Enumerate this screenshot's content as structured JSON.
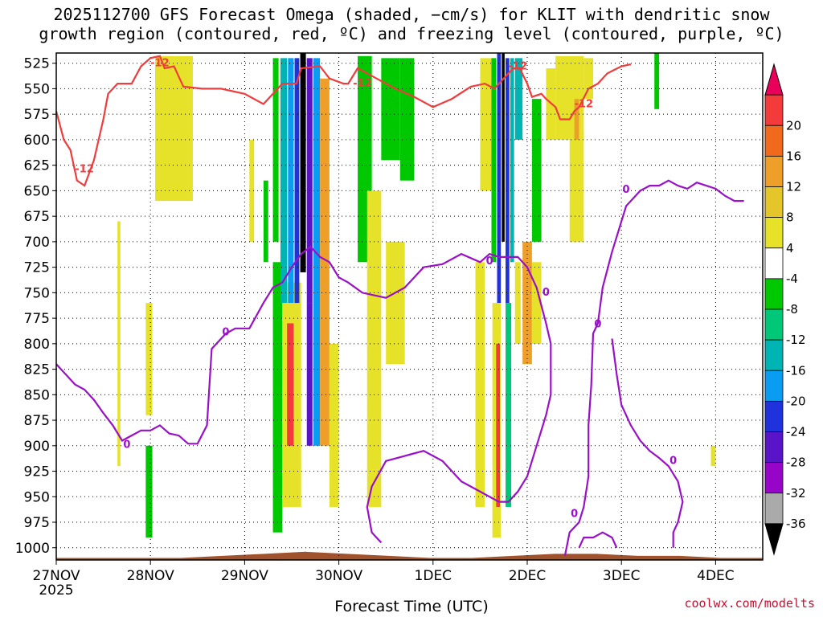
{
  "title_line1": "2025112700 GFS Forecast Omega (shaded, −cm/s) for KLIT with dendritic snow",
  "title_line2": "growth region (contoured, red, ºC) and freezing level (contoured, purple, ºC)",
  "xlabel": "Forecast Time (UTC)",
  "credit": "coolwx.com/modelts",
  "chart_data": {
    "type": "heatmap",
    "title": "2025112700 GFS Forecast Omega (shaded, −cm/s) for KLIT with dendritic snow growth region (contoured, red, ºC) and freezing level (contoured, purple, ºC)",
    "xlabel": "Forecast Time (UTC)",
    "ylabel": "",
    "x_ticks": [
      "27NOV",
      "28NOV",
      "29NOV",
      "30NOV",
      "1DEC",
      "2DEC",
      "3DEC",
      "4DEC"
    ],
    "x_tick_sub": "2025",
    "x_range_days": [
      0,
      7.5
    ],
    "y_ticks": [
      525,
      550,
      575,
      600,
      625,
      650,
      675,
      700,
      725,
      750,
      775,
      800,
      825,
      850,
      875,
      900,
      925,
      950,
      975,
      1000
    ],
    "y_range_hPa": [
      515,
      1012
    ],
    "grid": true,
    "colorbar": {
      "ticks": [
        20,
        16,
        12,
        8,
        4,
        -4,
        -8,
        -12,
        -16,
        -20,
        -24,
        -28,
        -32,
        -36
      ],
      "colors": [
        "#e8005a",
        "#f33b3b",
        "#f06a1d",
        "#ee9f2a",
        "#e4c52a",
        "#e6e22a",
        "#ffffff",
        "#00c800",
        "#00c878",
        "#00b4b4",
        "#0a9cf0",
        "#1f32dc",
        "#5a14c8",
        "#9605c8",
        "#aaaaaa",
        "#000000"
      ]
    },
    "omega_cells": [
      {
        "t": [
          0.65,
          0.68
        ],
        "p": [
          680,
          920
        ],
        "v": 5
      },
      {
        "t": [
          0.95,
          1.02
        ],
        "p": [
          760,
          870
        ],
        "v": 5
      },
      {
        "t": [
          0.95,
          1.02
        ],
        "p": [
          900,
          990
        ],
        "v": -7
      },
      {
        "t": [
          1.05,
          1.45
        ],
        "p": [
          518,
          660
        ],
        "v": 5
      },
      {
        "t": [
          1.05,
          1.1
        ],
        "p": [
          518,
          560
        ],
        "v": 5
      },
      {
        "t": [
          2.05,
          2.1
        ],
        "p": [
          600,
          700
        ],
        "v": 5
      },
      {
        "t": [
          2.2,
          2.25
        ],
        "p": [
          640,
          720
        ],
        "v": -7
      },
      {
        "t": [
          2.3,
          2.4
        ],
        "p": [
          720,
          985
        ],
        "v": -7
      },
      {
        "t": [
          2.4,
          2.6
        ],
        "p": [
          740,
          960
        ],
        "v": 6
      },
      {
        "t": [
          2.45,
          2.52
        ],
        "p": [
          780,
          900
        ],
        "v": 17
      },
      {
        "t": [
          2.3,
          2.36
        ],
        "p": [
          520,
          700
        ],
        "v": -7
      },
      {
        "t": [
          2.38,
          2.45
        ],
        "p": [
          520,
          760
        ],
        "v": -14
      },
      {
        "t": [
          2.46,
          2.52
        ],
        "p": [
          520,
          760
        ],
        "v": -18
      },
      {
        "t": [
          2.53,
          2.58
        ],
        "p": [
          520,
          760
        ],
        "v": -22
      },
      {
        "t": [
          2.59,
          2.65
        ],
        "p": [
          515,
          730
        ],
        "v": -40
      },
      {
        "t": [
          2.66,
          2.72
        ],
        "p": [
          520,
          760
        ],
        "v": -26
      },
      {
        "t": [
          2.73,
          2.8
        ],
        "p": [
          520,
          900
        ],
        "v": -18
      },
      {
        "t": [
          2.8,
          2.9
        ],
        "p": [
          540,
          900
        ],
        "v": 9
      },
      {
        "t": [
          2.66,
          2.72
        ],
        "p": [
          760,
          900
        ],
        "v": -24
      },
      {
        "t": [
          2.9,
          3.0
        ],
        "p": [
          800,
          960
        ],
        "v": 6
      },
      {
        "t": [
          3.2,
          3.35
        ],
        "p": [
          518,
          720
        ],
        "v": -7
      },
      {
        "t": [
          3.3,
          3.45
        ],
        "p": [
          650,
          960
        ],
        "v": 5
      },
      {
        "t": [
          3.45,
          3.65
        ],
        "p": [
          520,
          620
        ],
        "v": -7
      },
      {
        "t": [
          3.5,
          3.7
        ],
        "p": [
          700,
          820
        ],
        "v": 5
      },
      {
        "t": [
          3.65,
          3.8
        ],
        "p": [
          520,
          640
        ],
        "v": -7
      },
      {
        "t": [
          4.45,
          4.55
        ],
        "p": [
          720,
          960
        ],
        "v": 5
      },
      {
        "t": [
          4.5,
          4.62
        ],
        "p": [
          520,
          650
        ],
        "v": 5
      },
      {
        "t": [
          4.62,
          4.67
        ],
        "p": [
          520,
          720
        ],
        "v": -7
      },
      {
        "t": [
          4.68,
          4.72
        ],
        "p": [
          515,
          760
        ],
        "v": -20
      },
      {
        "t": [
          4.73,
          4.76
        ],
        "p": [
          515,
          700
        ],
        "v": -40
      },
      {
        "t": [
          4.63,
          4.72
        ],
        "p": [
          760,
          990
        ],
        "v": 7
      },
      {
        "t": [
          4.67,
          4.71
        ],
        "p": [
          800,
          960
        ],
        "v": 19
      },
      {
        "t": [
          4.77,
          4.81
        ],
        "p": [
          520,
          760
        ],
        "v": -20
      },
      {
        "t": [
          4.82,
          4.86
        ],
        "p": [
          520,
          720
        ],
        "v": -14
      },
      {
        "t": [
          4.77,
          4.83
        ],
        "p": [
          760,
          960
        ],
        "v": -8
      },
      {
        "t": [
          4.87,
          4.95
        ],
        "p": [
          520,
          600
        ],
        "v": -14
      },
      {
        "t": [
          4.87,
          4.93
        ],
        "p": [
          720,
          800
        ],
        "v": 6
      },
      {
        "t": [
          4.95,
          5.05
        ],
        "p": [
          700,
          820
        ],
        "v": 9
      },
      {
        "t": [
          5.05,
          5.15
        ],
        "p": [
          560,
          700
        ],
        "v": -7
      },
      {
        "t": [
          5.05,
          5.15
        ],
        "p": [
          720,
          800
        ],
        "v": 5
      },
      {
        "t": [
          5.2,
          5.3
        ],
        "p": [
          530,
          600
        ],
        "v": 5
      },
      {
        "t": [
          5.3,
          5.6
        ],
        "p": [
          518,
          600
        ],
        "v": 5
      },
      {
        "t": [
          5.6,
          5.7
        ],
        "p": [
          520,
          560
        ],
        "v": 5
      },
      {
        "t": [
          5.45,
          5.6
        ],
        "p": [
          590,
          700
        ],
        "v": 5
      },
      {
        "t": [
          5.5,
          5.55
        ],
        "p": [
          560,
          600
        ],
        "v": 9
      },
      {
        "t": [
          6.35,
          6.4
        ],
        "p": [
          515,
          570
        ],
        "v": -7
      },
      {
        "t": [
          6.95,
          7.0
        ],
        "p": [
          900,
          920
        ],
        "v": 5
      }
    ],
    "terrain_hPa": [
      1010,
      1010,
      1010,
      1010,
      1008,
      1006,
      1004,
      1006,
      1008,
      1010,
      1010,
      1008,
      1006,
      1006,
      1008,
      1008,
      1010,
      1010
    ],
    "dgz_contour_-12": [
      [
        0.0,
        572
      ],
      [
        0.08,
        600
      ],
      [
        0.15,
        610
      ],
      [
        0.22,
        640
      ],
      [
        0.3,
        645
      ],
      [
        0.4,
        620
      ],
      [
        0.5,
        580
      ],
      [
        0.55,
        555
      ],
      [
        0.65,
        545
      ],
      [
        0.8,
        545
      ],
      [
        0.9,
        528
      ],
      [
        1.0,
        520
      ],
      [
        1.1,
        518
      ],
      [
        1.15,
        530
      ],
      [
        1.25,
        528
      ],
      [
        1.35,
        548
      ],
      [
        1.55,
        550
      ],
      [
        1.75,
        550
      ],
      [
        2.0,
        555
      ],
      [
        2.2,
        565
      ],
      [
        2.4,
        545
      ],
      [
        2.55,
        545
      ],
      [
        2.6,
        530
      ],
      [
        2.8,
        528
      ],
      [
        2.9,
        540
      ],
      [
        3.05,
        545
      ],
      [
        3.1,
        545
      ],
      [
        3.2,
        530
      ],
      [
        3.4,
        540
      ],
      [
        3.6,
        550
      ],
      [
        3.8,
        558
      ],
      [
        4.0,
        568
      ],
      [
        4.2,
        560
      ],
      [
        4.4,
        548
      ],
      [
        4.55,
        545
      ],
      [
        4.65,
        550
      ],
      [
        4.75,
        540
      ],
      [
        4.85,
        530
      ],
      [
        4.92,
        530
      ],
      [
        5.0,
        545
      ],
      [
        5.05,
        558
      ],
      [
        5.15,
        555
      ],
      [
        5.2,
        560
      ],
      [
        5.3,
        568
      ],
      [
        5.35,
        580
      ],
      [
        5.45,
        580
      ],
      [
        5.5,
        572
      ],
      [
        5.55,
        568
      ],
      [
        5.65,
        550
      ],
      [
        5.75,
        545
      ],
      [
        5.85,
        535
      ],
      [
        6.0,
        528
      ],
      [
        6.1,
        526
      ]
    ],
    "freezing_contour_0": [
      [
        0.0,
        820
      ],
      [
        0.1,
        830
      ],
      [
        0.2,
        840
      ],
      [
        0.3,
        845
      ],
      [
        0.4,
        855
      ],
      [
        0.5,
        868
      ],
      [
        0.6,
        880
      ],
      [
        0.7,
        895
      ],
      [
        0.8,
        890
      ],
      [
        0.9,
        885
      ],
      [
        1.0,
        885
      ],
      [
        1.1,
        880
      ],
      [
        1.2,
        888
      ],
      [
        1.3,
        890
      ],
      [
        1.4,
        898
      ],
      [
        1.5,
        898
      ],
      [
        1.6,
        880
      ],
      [
        1.65,
        805
      ],
      [
        1.8,
        790
      ],
      [
        1.9,
        785
      ],
      [
        2.05,
        785
      ],
      [
        2.2,
        760
      ],
      [
        2.3,
        745
      ],
      [
        2.4,
        740
      ],
      [
        2.5,
        725
      ],
      [
        2.6,
        712
      ],
      [
        2.7,
        705
      ],
      [
        2.8,
        715
      ],
      [
        2.9,
        720
      ],
      [
        3.0,
        735
      ],
      [
        3.1,
        740
      ],
      [
        3.25,
        750
      ],
      [
        3.5,
        755
      ],
      [
        3.7,
        745
      ],
      [
        3.9,
        725
      ],
      [
        4.1,
        722
      ],
      [
        4.3,
        712
      ],
      [
        4.5,
        720
      ],
      [
        4.6,
        712
      ],
      [
        4.7,
        715
      ],
      [
        4.8,
        715
      ],
      [
        4.9,
        715
      ],
      [
        5.0,
        725
      ],
      [
        5.1,
        745
      ],
      [
        5.2,
        780
      ],
      [
        5.25,
        800
      ],
      [
        5.25,
        850
      ],
      [
        5.2,
        870
      ],
      [
        5.1,
        900
      ],
      [
        5.0,
        930
      ],
      [
        4.9,
        945
      ],
      [
        4.8,
        955
      ],
      [
        4.7,
        955
      ],
      [
        4.6,
        950
      ],
      [
        4.5,
        945
      ],
      [
        4.3,
        935
      ],
      [
        4.1,
        915
      ],
      [
        3.9,
        905
      ],
      [
        3.7,
        910
      ],
      [
        3.5,
        915
      ],
      [
        3.35,
        940
      ],
      [
        3.3,
        960
      ],
      [
        3.35,
        985
      ],
      [
        3.45,
        995
      ]
    ],
    "freezing_contour_0_east": [
      [
        5.55,
        1000
      ],
      [
        5.6,
        990
      ],
      [
        5.7,
        990
      ],
      [
        5.8,
        985
      ],
      [
        5.9,
        990
      ],
      [
        5.95,
        1000
      ]
    ],
    "freezing_contour_0_right": [
      [
        5.4,
        1008
      ],
      [
        5.45,
        985
      ],
      [
        5.55,
        975
      ],
      [
        5.6,
        960
      ],
      [
        5.65,
        930
      ],
      [
        5.65,
        880
      ],
      [
        5.68,
        840
      ],
      [
        5.7,
        790
      ],
      [
        5.75,
        780
      ],
      [
        5.8,
        745
      ],
      [
        5.9,
        710
      ],
      [
        6.0,
        680
      ],
      [
        6.05,
        665
      ],
      [
        6.1,
        660
      ],
      [
        6.2,
        650
      ],
      [
        6.3,
        645
      ],
      [
        6.4,
        645
      ],
      [
        6.5,
        640
      ],
      [
        6.6,
        645
      ],
      [
        6.7,
        648
      ],
      [
        6.8,
        642
      ],
      [
        6.9,
        645
      ],
      [
        7.0,
        648
      ],
      [
        7.1,
        655
      ],
      [
        7.2,
        660
      ],
      [
        7.3,
        660
      ]
    ],
    "freezing_contour_0_loop": [
      [
        5.9,
        795
      ],
      [
        5.95,
        830
      ],
      [
        6.0,
        860
      ],
      [
        6.1,
        880
      ],
      [
        6.2,
        895
      ],
      [
        6.3,
        905
      ],
      [
        6.4,
        912
      ],
      [
        6.5,
        920
      ],
      [
        6.6,
        935
      ],
      [
        6.65,
        955
      ],
      [
        6.6,
        975
      ],
      [
        6.55,
        985
      ],
      [
        6.55,
        1000
      ]
    ],
    "contour_label_-12": "-12",
    "contour_label_0": "0"
  }
}
